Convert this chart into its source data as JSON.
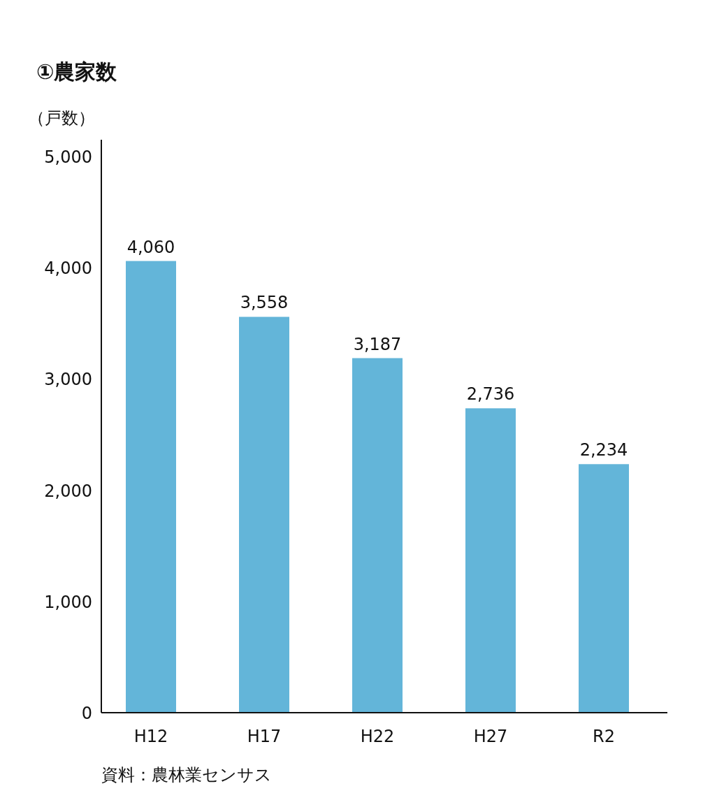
{
  "chart_data": {
    "type": "bar",
    "title": "①農家数",
    "ylabel": "（戸数）",
    "categories": [
      "H12",
      "H17",
      "H22",
      "H27",
      "R2"
    ],
    "values": [
      4060,
      3558,
      3187,
      2736,
      2234
    ],
    "color": "#63b5d9",
    "ylim": [
      0,
      5150
    ],
    "yticks": [
      {
        "value": 0,
        "label": "0"
      },
      {
        "value": 1000,
        "label": "1,000"
      },
      {
        "value": 2000,
        "label": "2,000"
      },
      {
        "value": 3000,
        "label": "3,000"
      },
      {
        "value": 4000,
        "label": "4,000"
      },
      {
        "value": 5000,
        "label": "5,000"
      }
    ],
    "data_labels": true,
    "value_labels": [
      "4,060",
      "3,558",
      "3,187",
      "2,736",
      "2,234"
    ],
    "annotations": [
      "資料：農林業センサス"
    ]
  }
}
